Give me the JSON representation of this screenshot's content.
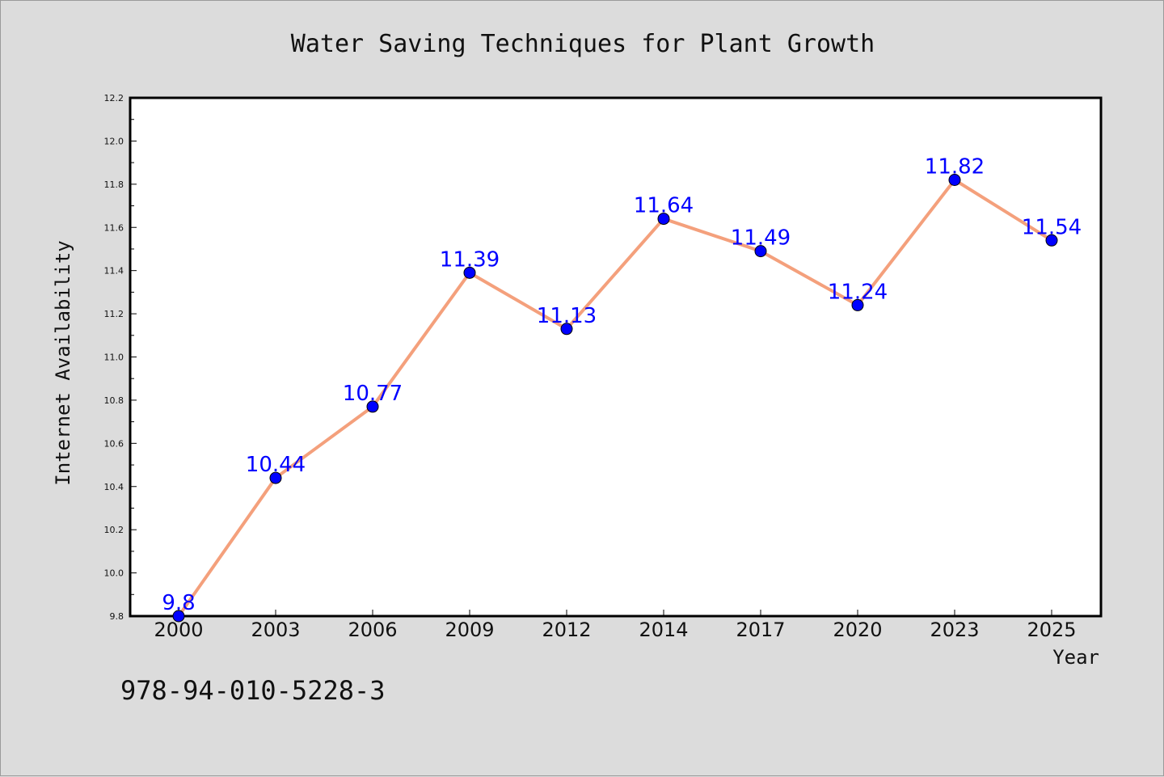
{
  "chart_data": {
    "type": "line",
    "title": "Water Saving Techniques for Plant Growth",
    "xlabel": "Year",
    "ylabel": "Internet Availability",
    "categories": [
      "2000",
      "2003",
      "2006",
      "2009",
      "2012",
      "2014",
      "2017",
      "2020",
      "2023",
      "2025"
    ],
    "series": [
      {
        "values": [
          9.8,
          10.44,
          10.77,
          11.39,
          11.13,
          11.64,
          11.49,
          11.24,
          11.82,
          11.54
        ],
        "data_labels": [
          "9.8",
          "10.44",
          "10.77",
          "11.39",
          "11.13",
          "11.64",
          "11.49",
          "11.24",
          "11.82",
          "11.54"
        ]
      }
    ],
    "ylim": [
      9.8,
      12.2
    ],
    "yticks": [
      "9.8",
      "10.0",
      "10.2",
      "10.4",
      "10.6",
      "10.8",
      "11.0",
      "11.2",
      "11.4",
      "11.6",
      "11.8",
      "12.0",
      "12.2"
    ],
    "grid": false,
    "legend": "none",
    "colors": {
      "line": "#f4a07c",
      "marker": "#0000ff",
      "marker_edge": "#000000",
      "data_label": "#0000ff",
      "background": "#dcdcdc",
      "plot_area": "#ffffff"
    }
  },
  "annotation": {
    "isbn": "978-94-010-5228-3"
  }
}
